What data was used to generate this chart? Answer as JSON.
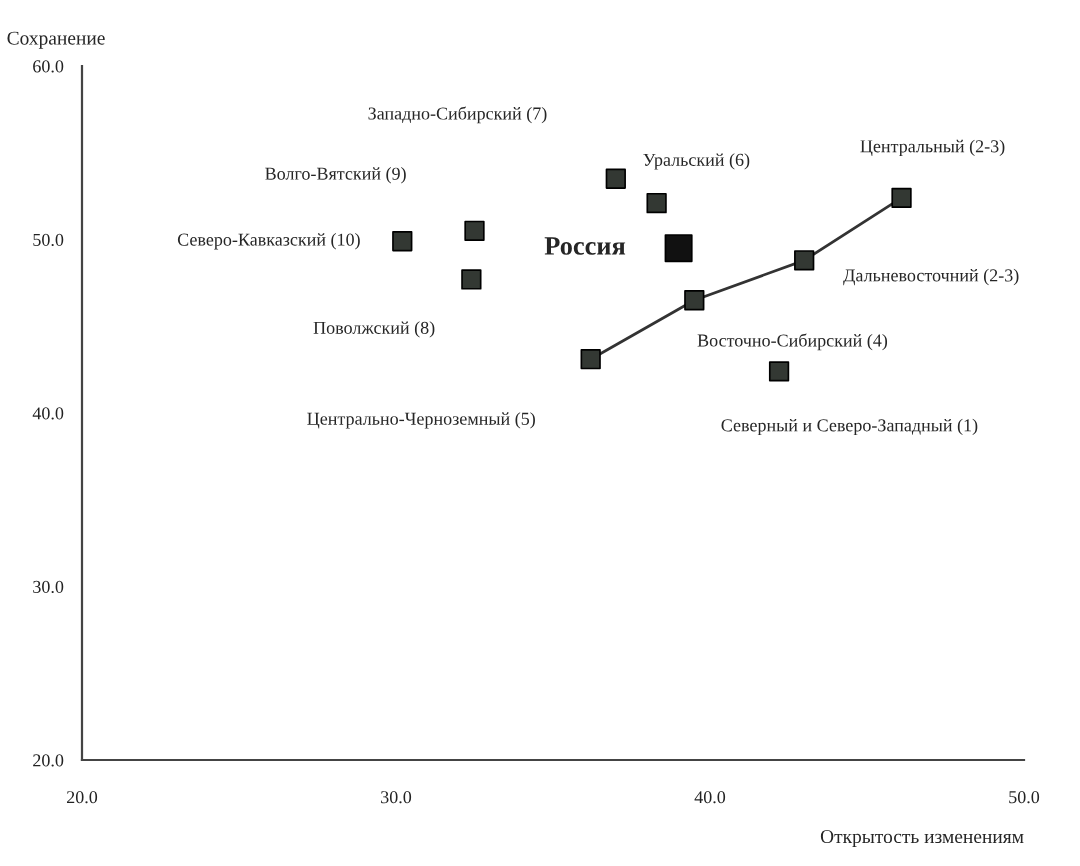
{
  "chart_data": {
    "type": "scatter",
    "xlabel": "Открытость изменениям",
    "ylabel": "Сохранение",
    "xlim": [
      20,
      50
    ],
    "ylim": [
      20,
      60
    ],
    "xticks": [
      {
        "value": 20,
        "label": "20.0"
      },
      {
        "value": 30,
        "label": "30.0"
      },
      {
        "value": 40,
        "label": "40.0"
      },
      {
        "value": 50,
        "label": "50.0"
      }
    ],
    "yticks": [
      {
        "value": 20,
        "label": "20.0"
      },
      {
        "value": 30,
        "label": "30.0"
      },
      {
        "value": 40,
        "label": "40.0"
      },
      {
        "value": 50,
        "label": "50.0"
      },
      {
        "value": 60,
        "label": "60.0"
      }
    ],
    "grid": false,
    "legend": false,
    "marker": "square",
    "series": [
      {
        "type": "scatter",
        "color": "#333833",
        "x": [
          37.0,
          38.3,
          32.5,
          30.2,
          32.4,
          46.1,
          43.0,
          39.5,
          36.2,
          42.2
        ],
        "values": [
          53.5,
          52.1,
          50.5,
          49.9,
          47.7,
          52.4,
          48.8,
          46.5,
          43.1,
          42.4
        ]
      },
      {
        "type": "scatter",
        "color": "#111111",
        "x": [
          39.0
        ],
        "values": [
          49.5
        ]
      },
      {
        "type": "line",
        "color": "#333333",
        "marker": "none",
        "line_style": "solid",
        "x": [
          36.2,
          39.5,
          43.0,
          46.1
        ],
        "values": [
          43.1,
          46.5,
          48.8,
          52.4
        ]
      }
    ],
    "annotations": [
      "Западно-Сибирский (7)",
      "Уральский (6)",
      "Волго-Вятский (9)",
      "Северо-Кавказский (10)",
      "Поволжский (8)",
      "Центральный (2-3)",
      "Дальневосточний (2-3)",
      "Восточно-Сибирский (4)",
      "Центрально-Черноземный (5)",
      "Северный и Северо-Западный (1)",
      "Россия"
    ]
  }
}
